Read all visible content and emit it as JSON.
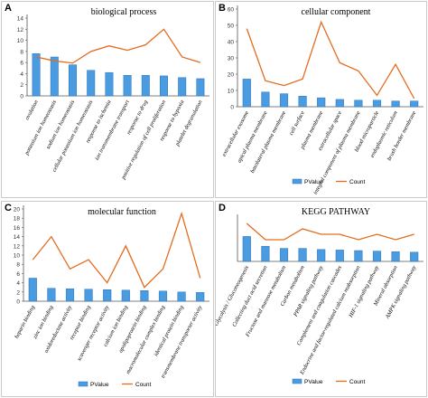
{
  "colors": {
    "bar": "#4a9be0",
    "bar_edge": "#2a77c0",
    "line": "#e36c1e",
    "axis": "#555555",
    "grid": "#e0e0e0"
  },
  "chart_data": [
    {
      "panel": "A",
      "type": "bar",
      "title": "biological process",
      "categories": [
        "ovulation",
        "potassium ion homeostasis",
        "sodium ion homeostasis",
        "cellular potassium ion homeostasis",
        "response to ischemia",
        "ion transmembrane transport",
        "response to drug",
        "positive regulation of cell proliferation",
        "response to hypoxia",
        "platelet degranulation"
      ],
      "series": [
        {
          "name": "PValue",
          "type": "bar",
          "values": [
            7.6,
            7.0,
            5.6,
            4.6,
            4.2,
            3.7,
            3.7,
            3.6,
            3.3,
            3.1
          ]
        },
        {
          "name": "Count",
          "type": "line",
          "values": [
            7,
            6.3,
            5.9,
            8,
            9,
            8.2,
            9.2,
            12,
            7,
            6
          ]
        }
      ],
      "ylim": [
        0,
        14
      ],
      "yticks": [
        0,
        2,
        4,
        6,
        8,
        10,
        12,
        14
      ],
      "legend": "none"
    },
    {
      "panel": "B",
      "type": "bar",
      "title": "cellular component",
      "categories": [
        "extracellular exosome",
        "apical plasma membrane",
        "basolateral plasma membrane",
        "cell surface",
        "plasma membrane",
        "extracellular space",
        "integral component of plasma membrane",
        "blood microparticle",
        "endoplasmic reticulum",
        "brush border membrane"
      ],
      "series": [
        {
          "name": "PValue",
          "type": "bar",
          "values": [
            17,
            9,
            8,
            6.5,
            5.5,
            4.5,
            4,
            4,
            3.5,
            3.5
          ]
        },
        {
          "name": "Count",
          "type": "line",
          "values": [
            48,
            16,
            13,
            17,
            52,
            27,
            22,
            7,
            26,
            5
          ]
        }
      ],
      "ylim": [
        0,
        60
      ],
      "yticks": [
        0,
        10,
        20,
        30,
        40,
        50,
        60
      ],
      "legend": "bottom"
    },
    {
      "panel": "C",
      "type": "bar",
      "title": "molecular function",
      "categories": [
        "heparin binding",
        "zinc ion binding",
        "oxidoreductase activity",
        "receptor binding",
        "scavenger receptor activity",
        "calcium ion binding",
        "apolipoprotein binding",
        "macromolecular complex binding",
        "identical protein binding",
        "transmembrane transporter activity"
      ],
      "series": [
        {
          "name": "PValue",
          "type": "bar",
          "values": [
            5,
            2.8,
            2.7,
            2.6,
            2.5,
            2.4,
            2.3,
            2.2,
            2,
            1.9
          ]
        },
        {
          "name": "Count",
          "type": "line",
          "values": [
            9,
            14,
            7,
            9,
            4,
            12,
            3,
            7,
            19,
            5
          ]
        }
      ],
      "ylim": [
        0,
        20
      ],
      "yticks": [
        0,
        2,
        4,
        6,
        8,
        10,
        12,
        14,
        16,
        18,
        20
      ],
      "legend": "bottom"
    },
    {
      "panel": "D",
      "type": "bar",
      "title": "KEGG PATHWAY",
      "categories": [
        "Glycolysis / Gluconeogenesis",
        "Collecting duct acid secretion",
        "Fructose and mannose metabolism",
        "Carbon metabolism",
        "PPAR signaling pathway",
        "Complement and coagulation cascades",
        "Endocrine and factor-regulated calcium reabsorption",
        "HIF-1 signaling pathway",
        "Mineral absorption",
        "AMPK signaling pathway"
      ],
      "series": [
        {
          "name": "PValue",
          "type": "bar",
          "values": [
            4.6,
            2.8,
            2.4,
            2.4,
            2.2,
            2.1,
            2.0,
            1.9,
            1.8,
            1.7
          ]
        },
        {
          "name": "Count",
          "type": "line",
          "values": [
            7,
            4,
            4,
            6,
            5,
            5,
            4,
            5,
            4,
            5
          ]
        }
      ],
      "ylim": [
        0,
        8
      ],
      "yticks": [],
      "legend": "bottom"
    }
  ]
}
